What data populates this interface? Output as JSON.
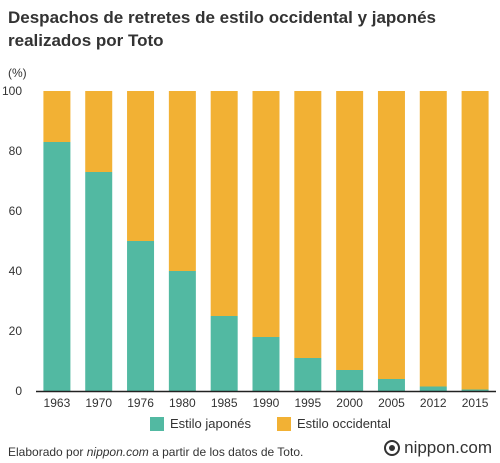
{
  "chart_data": {
    "type": "bar",
    "stacked": true,
    "title": "Despachos de retretes de estilo occidental y japonés realizados por Toto",
    "ylabel": "(%)",
    "xlabel": "",
    "ylim": [
      0,
      100
    ],
    "yticks": [
      0,
      20,
      40,
      60,
      80,
      100
    ],
    "grid": false,
    "legend_position": "bottom",
    "categories": [
      "1963",
      "1970",
      "1976",
      "1980",
      "1985",
      "1990",
      "1995",
      "2000",
      "2005",
      "2012",
      "2015"
    ],
    "series": [
      {
        "name": "Estilo japonés",
        "color": "#52b9a2",
        "values": [
          83,
          73,
          50,
          40,
          25,
          18,
          11,
          7,
          4,
          1.5,
          0.5
        ]
      },
      {
        "name": "Estilo occidental",
        "color": "#f2b134",
        "values": [
          17,
          27,
          50,
          60,
          75,
          82,
          89,
          93,
          96,
          98.5,
          99.5
        ]
      }
    ]
  },
  "footer": {
    "prefix": "Elaborado por ",
    "source": "nippon.com",
    "suffix": " a partir de los datos de Toto."
  },
  "brand": {
    "name": "nippon.com"
  }
}
